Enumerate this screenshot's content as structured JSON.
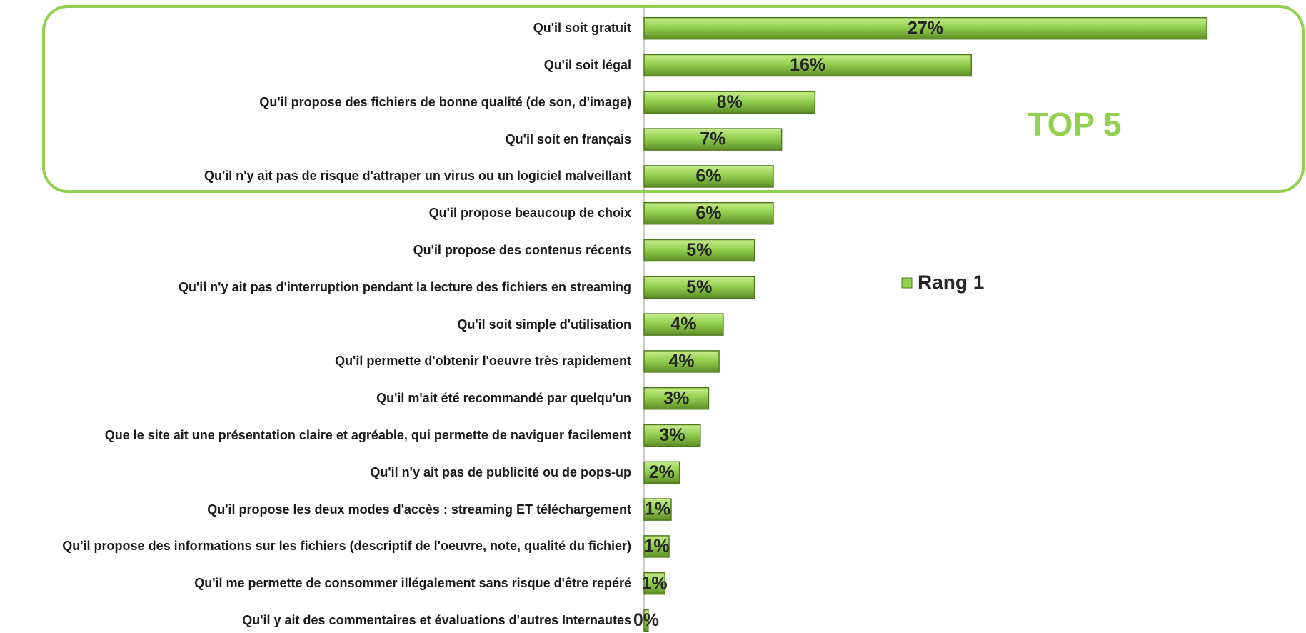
{
  "chart_data": {
    "type": "barh",
    "categories": [
      "Qu'il soit gratuit",
      "Qu'il soit légal",
      "Qu'il propose des fichiers de bonne qualité (de son, d'image)",
      "Qu'il soit en français",
      "Qu'il n'y ait pas de risque d'attraper un virus ou un logiciel malveillant",
      "Qu'il propose beaucoup de choix",
      "Qu'il propose des contenus récents",
      "Qu'il n'y ait pas d'interruption pendant la lecture des fichiers en streaming",
      "Qu'il soit simple d'utilisation",
      "Qu'il permette d'obtenir l'oeuvre très rapidement",
      "Qu'il m'ait été recommandé par quelqu'un",
      "Que le site ait une présentation claire et agréable, qui permette de naviguer facilement",
      "Qu'il n'y ait pas de publicité ou de pops-up",
      "Qu'il propose les deux modes d'accès : streaming ET téléchargement",
      "Qu'il propose des informations sur les fichiers (descriptif de l'oeuvre, note, qualité du fichier)",
      "Qu'il me permette de consommer illégalement sans risque d'être repéré",
      "Qu'il y ait des commentaires et évaluations d'autres Internautes"
    ],
    "series": [
      {
        "name": "Rang 1",
        "color": "#92d050",
        "values": [
          27,
          15.7,
          8.2,
          6.6,
          6.2,
          6.2,
          5.3,
          5.3,
          3.8,
          3.6,
          3.1,
          2.7,
          1.7,
          1.3,
          1.2,
          1.0,
          0.2
        ],
        "value_labels": [
          "27%",
          "16%",
          "8%",
          "7%",
          "6%",
          "6%",
          "5%",
          "5%",
          "4%",
          "4%",
          "3%",
          "3%",
          "2%",
          "1%",
          "1%",
          "1%",
          "0%"
        ]
      }
    ],
    "xlim": [
      0,
      27
    ],
    "annotation": "TOP 5",
    "legend": "right"
  }
}
